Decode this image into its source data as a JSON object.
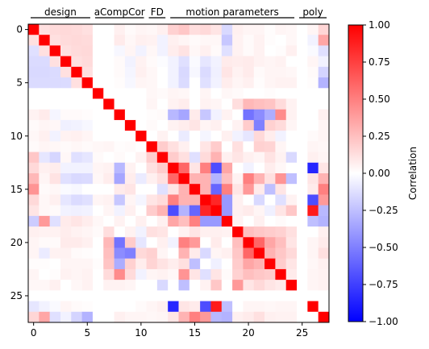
{
  "chart_data": {
    "type": "heatmap",
    "n": 28,
    "colormap": "bwr",
    "vmin": -1.0,
    "vmax": 1.0,
    "x_ticks": [
      0,
      5,
      10,
      15,
      20,
      25
    ],
    "y_ticks": [
      0,
      5,
      10,
      15,
      20,
      25
    ],
    "colorbar": {
      "label": "Correlation",
      "ticks": [
        "1.00",
        "0.75",
        "0.50",
        "0.25",
        "0.00",
        "−0.25",
        "−0.50",
        "−0.75",
        "−1.00"
      ],
      "tick_values": [
        1.0,
        0.75,
        0.5,
        0.25,
        0.0,
        -0.25,
        -0.5,
        -0.75,
        -1.0
      ]
    },
    "groups": [
      {
        "label": "design",
        "start": 0,
        "end": 5
      },
      {
        "label": "aCompCor",
        "start": 6,
        "end": 10
      },
      {
        "label": "FD",
        "start": 11,
        "end": 12
      },
      {
        "label": "motion parameters",
        "start": 13,
        "end": 24
      },
      {
        "label": "poly",
        "start": 25,
        "end": 27
      }
    ],
    "matrix": [
      [
        1.0,
        0.12,
        0.14,
        0.15,
        0.14,
        0.12,
        0.0,
        0.0,
        0.06,
        0.02,
        0.04,
        0.03,
        0.06,
        0.18,
        0.22,
        0.13,
        0.15,
        0.1,
        -0.15,
        0.06,
        0.04,
        0.04,
        0.01,
        0.04,
        0.03,
        0.0,
        0.04,
        0.16
      ],
      [
        0.12,
        1.0,
        0.12,
        0.14,
        0.15,
        0.14,
        0.0,
        0.0,
        0.08,
        0.03,
        0.06,
        0.05,
        -0.05,
        0.06,
        0.04,
        0.02,
        0.03,
        0.03,
        -0.22,
        0.05,
        0.02,
        0.05,
        0.01,
        0.0,
        0.03,
        0.0,
        -0.05,
        0.35
      ],
      [
        -0.12,
        0.12,
        1.0,
        0.12,
        0.14,
        0.15,
        0.0,
        0.0,
        -0.03,
        0.04,
        -0.05,
        0.03,
        -0.05,
        0.07,
        0.11,
        0.03,
        0.06,
        0.02,
        -0.12,
        0.05,
        0.02,
        0.05,
        0.0,
        0.01,
        0.06,
        0.0,
        -0.02,
        -0.12
      ],
      [
        -0.14,
        -0.14,
        0.12,
        1.0,
        0.12,
        0.14,
        0.0,
        0.0,
        0.02,
        -0.05,
        0.05,
        0.02,
        -0.01,
        -0.05,
        -0.12,
        -0.02,
        -0.1,
        -0.05,
        0.08,
        0.07,
        0.08,
        0.05,
        0.04,
        0.05,
        0.0,
        0.0,
        0.04,
        -0.05
      ],
      [
        -0.15,
        -0.15,
        -0.14,
        0.12,
        1.0,
        0.12,
        0.0,
        0.0,
        0.02,
        -0.04,
        0.06,
        0.03,
        0.0,
        -0.05,
        -0.15,
        -0.03,
        -0.14,
        -0.06,
        0.1,
        0.05,
        0.08,
        0.02,
        0.04,
        0.04,
        0.03,
        0.0,
        0.02,
        -0.17
      ],
      [
        -0.14,
        -0.14,
        -0.14,
        -0.14,
        0.12,
        1.0,
        0.0,
        0.0,
        0.01,
        -0.03,
        0.04,
        0.03,
        0.0,
        -0.05,
        -0.14,
        0.0,
        -0.12,
        -0.05,
        0.07,
        0.04,
        0.06,
        0.01,
        0.04,
        0.05,
        0.05,
        0.0,
        0.01,
        -0.3
      ],
      [
        0.0,
        0.0,
        0.0,
        0.0,
        0.0,
        0.0,
        1.0,
        0.0,
        0.0,
        0.0,
        0.0,
        0.03,
        0.02,
        0.04,
        0.03,
        0.0,
        0.04,
        0.0,
        0.03,
        0.02,
        0.0,
        0.0,
        0.01,
        0.0,
        0.0,
        0.0,
        0.0,
        0.0
      ],
      [
        0.0,
        0.0,
        0.0,
        0.0,
        0.0,
        0.0,
        0.0,
        1.0,
        0.0,
        0.0,
        0.0,
        0.04,
        0.0,
        0.05,
        0.07,
        0.0,
        0.05,
        0.04,
        0.0,
        0.13,
        0.28,
        0.25,
        0.23,
        0.14,
        0.05,
        0.0,
        0.0,
        0.0
      ],
      [
        0.05,
        0.08,
        -0.04,
        0.02,
        0.02,
        0.01,
        0.0,
        0.0,
        1.0,
        0.0,
        0.0,
        0.01,
        0.02,
        -0.28,
        -0.35,
        0.08,
        -0.22,
        -0.05,
        0.05,
        0.0,
        -0.55,
        -0.45,
        -0.32,
        0.45,
        0.05,
        0.0,
        0.0,
        0.06
      ],
      [
        0.02,
        0.04,
        0.03,
        -0.06,
        -0.05,
        -0.03,
        0.0,
        0.0,
        0.0,
        1.0,
        0.0,
        0.02,
        0.0,
        0.05,
        0.07,
        0.1,
        0.04,
        0.06,
        0.0,
        0.05,
        0.2,
        -0.5,
        0.18,
        0.14,
        0.04,
        0.0,
        0.0,
        0.04
      ],
      [
        0.03,
        0.06,
        -0.05,
        0.05,
        0.06,
        0.04,
        0.0,
        0.0,
        0.0,
        0.0,
        1.0,
        0.0,
        0.05,
        0.0,
        -0.08,
        0.0,
        -0.04,
        0.0,
        0.06,
        -0.05,
        -0.1,
        0.15,
        0.07,
        -0.05,
        0.0,
        0.0,
        0.02,
        0.04
      ],
      [
        0.02,
        0.04,
        0.03,
        0.02,
        0.03,
        0.02,
        0.03,
        0.04,
        0.01,
        0.02,
        0.0,
        1.0,
        0.2,
        0.12,
        0.06,
        0.0,
        0.1,
        0.2,
        0.0,
        0.12,
        0.0,
        0.18,
        0.17,
        0.04,
        0.0,
        0.0,
        0.04,
        0.03
      ],
      [
        0.22,
        -0.1,
        -0.16,
        0.03,
        -0.12,
        -0.1,
        0.02,
        0.0,
        0.02,
        0.0,
        0.05,
        0.2,
        1.0,
        0.2,
        0.12,
        -0.12,
        0.14,
        0.3,
        0.06,
        0.1,
        0.06,
        0.04,
        0.11,
        0.05,
        -0.15,
        0.0,
        0.06,
        0.04
      ],
      [
        0.15,
        0.06,
        0.07,
        -0.05,
        -0.05,
        -0.05,
        0.04,
        0.05,
        -0.28,
        0.05,
        0.0,
        0.12,
        0.2,
        1.0,
        0.6,
        0.1,
        0.5,
        -0.7,
        0.35,
        0.0,
        -0.05,
        0.0,
        0.07,
        0.03,
        0.0,
        0.0,
        -0.85,
        0.1
      ],
      [
        0.28,
        0.04,
        0.11,
        -0.12,
        -0.15,
        -0.14,
        0.03,
        0.07,
        -0.35,
        0.07,
        -0.08,
        0.06,
        0.12,
        0.6,
        1.0,
        0.3,
        0.3,
        -0.3,
        0.25,
        0.05,
        0.5,
        0.3,
        0.12,
        0.42,
        -0.25,
        0.0,
        0.1,
        0.3
      ],
      [
        0.42,
        0.02,
        0.03,
        -0.02,
        -0.03,
        0.0,
        0.0,
        0.0,
        0.08,
        0.1,
        0.0,
        0.0,
        -0.12,
        0.1,
        0.3,
        1.0,
        0.3,
        -0.6,
        0.5,
        0.1,
        0.4,
        0.08,
        -0.25,
        0.1,
        0.0,
        0.0,
        0.08,
        0.5
      ],
      [
        0.15,
        0.03,
        0.06,
        -0.1,
        -0.14,
        -0.12,
        0.04,
        0.05,
        -0.22,
        0.04,
        -0.04,
        0.1,
        0.14,
        0.5,
        0.3,
        0.3,
        1.0,
        0.85,
        -0.4,
        0.06,
        0.0,
        -0.15,
        0.0,
        -0.12,
        0.05,
        0.0,
        -0.7,
        0.4
      ],
      [
        0.1,
        0.03,
        0.02,
        -0.05,
        -0.06,
        -0.05,
        0.0,
        0.04,
        -0.05,
        0.06,
        0.0,
        0.2,
        0.3,
        -0.7,
        -0.3,
        -0.6,
        0.85,
        1.0,
        -0.4,
        0.06,
        0.08,
        0.04,
        -0.06,
        0.1,
        0.22,
        0.0,
        0.9,
        -0.28
      ],
      [
        -0.2,
        0.4,
        -0.12,
        0.08,
        0.1,
        0.07,
        0.03,
        0.0,
        0.05,
        0.0,
        0.06,
        0.0,
        0.06,
        0.35,
        0.25,
        0.5,
        -0.4,
        -0.4,
        1.0,
        0.05,
        0.0,
        0.06,
        0.0,
        0.02,
        0.0,
        0.0,
        -0.25,
        -0.3
      ],
      [
        0.06,
        0.05,
        0.05,
        0.07,
        0.05,
        0.04,
        0.02,
        0.13,
        0.0,
        0.05,
        -0.05,
        0.12,
        0.1,
        0.0,
        0.05,
        0.1,
        0.06,
        0.06,
        0.05,
        1.0,
        0.25,
        0.22,
        0.2,
        0.18,
        0.12,
        0.0,
        0.0,
        0.06
      ],
      [
        0.04,
        0.02,
        0.02,
        0.08,
        0.08,
        0.06,
        0.0,
        0.28,
        -0.55,
        0.2,
        -0.1,
        0.0,
        0.06,
        -0.05,
        0.5,
        0.4,
        0.0,
        0.08,
        0.0,
        0.25,
        1.0,
        0.6,
        0.35,
        0.25,
        0.1,
        0.0,
        0.04,
        0.08
      ],
      [
        0.04,
        -0.08,
        0.05,
        0.05,
        0.02,
        0.01,
        0.0,
        0.25,
        -0.45,
        -0.5,
        0.15,
        0.18,
        0.04,
        0.0,
        0.3,
        0.08,
        -0.15,
        0.04,
        0.06,
        0.22,
        0.6,
        1.0,
        0.3,
        0.22,
        0.15,
        0.0,
        0.04,
        0.12
      ],
      [
        0.01,
        0.01,
        0.0,
        0.04,
        0.04,
        0.04,
        0.01,
        0.23,
        -0.32,
        0.18,
        0.07,
        0.17,
        0.11,
        0.07,
        0.12,
        -0.25,
        0.0,
        -0.06,
        0.0,
        0.2,
        0.35,
        0.3,
        1.0,
        0.2,
        0.1,
        0.0,
        0.03,
        0.06
      ],
      [
        0.04,
        0.0,
        0.01,
        0.05,
        0.04,
        0.05,
        0.0,
        0.14,
        0.45,
        0.14,
        -0.05,
        0.04,
        0.05,
        0.03,
        0.42,
        0.1,
        -0.12,
        0.1,
        0.02,
        0.18,
        0.25,
        0.22,
        0.2,
        1.0,
        0.08,
        0.0,
        0.04,
        0.05
      ],
      [
        0.03,
        0.03,
        0.06,
        0.0,
        0.03,
        0.05,
        0.0,
        0.05,
        0.05,
        0.04,
        0.0,
        0.0,
        -0.15,
        0.0,
        -0.25,
        0.0,
        0.05,
        0.22,
        0.0,
        0.4,
        0.1,
        0.15,
        0.1,
        0.08,
        1.0,
        0.0,
        0.04,
        0.05
      ],
      [
        0.0,
        0.0,
        0.0,
        0.0,
        0.0,
        0.0,
        0.0,
        0.0,
        0.0,
        0.0,
        0.0,
        0.0,
        0.0,
        0.0,
        0.0,
        0.0,
        0.0,
        0.0,
        0.0,
        0.0,
        0.0,
        0.0,
        0.0,
        0.0,
        0.0,
        0.0,
        0.0,
        0.0
      ],
      [
        -0.1,
        -0.05,
        -0.02,
        0.04,
        0.02,
        0.01,
        0.0,
        0.0,
        0.0,
        0.0,
        0.02,
        0.04,
        0.06,
        -0.85,
        0.1,
        0.08,
        -0.7,
        0.9,
        -0.25,
        0.0,
        0.04,
        0.04,
        0.03,
        0.04,
        0.04,
        0.0,
        1.0,
        0.0
      ],
      [
        0.16,
        0.35,
        -0.12,
        -0.05,
        -0.17,
        -0.3,
        0.0,
        0.0,
        0.06,
        0.04,
        0.04,
        0.03,
        0.04,
        0.1,
        0.3,
        0.5,
        0.4,
        -0.28,
        -0.3,
        0.06,
        0.08,
        0.12,
        0.06,
        0.05,
        0.05,
        0.0,
        0.0,
        1.0
      ]
    ]
  }
}
